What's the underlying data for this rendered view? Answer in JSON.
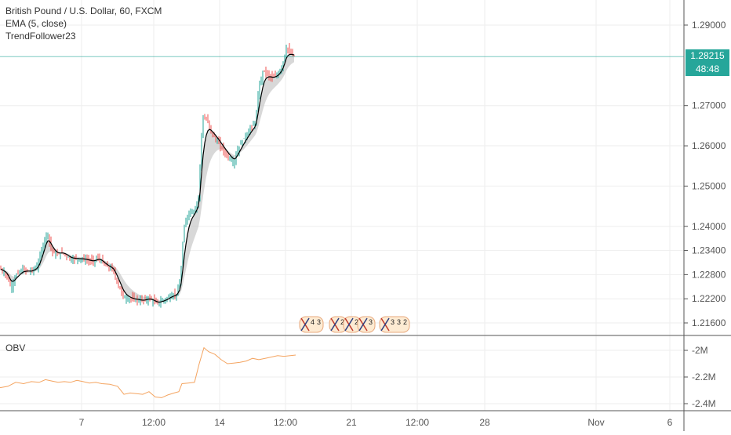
{
  "legend": {
    "symbol": "British Pound / U.S. Dollar, 60, FXCM",
    "indicator1": "EMA (5, close)",
    "indicator2": "TrendFollower23",
    "obv_label": "OBV"
  },
  "price_tag": {
    "value": "1.28215",
    "countdown": "48:48"
  },
  "colors": {
    "up": "#26a69a",
    "down": "#ef5350",
    "ema": "#000000",
    "fill": "#c8c8c8",
    "obv": "#f4a460",
    "grid": "#eeeeee",
    "price_line": "#26a69a"
  },
  "event_badges": [
    "4",
    "3",
    "23",
    "2",
    "3",
    "3",
    "3",
    "2"
  ],
  "chart_data": [
    {
      "type": "candlestick",
      "title": "British Pound / U.S. Dollar, 60, FXCM",
      "y_ticks": [
        "1.29000",
        "1.27000",
        "1.26000",
        "1.25000",
        "1.24000",
        "1.23400",
        "1.22800",
        "1.22200",
        "1.21600"
      ],
      "x_ticks": [
        "7",
        "12:00",
        "14",
        "12:00",
        "21",
        "12:00",
        "28",
        "Nov",
        "6"
      ],
      "ylim": [
        1.213,
        1.295
      ],
      "last_price": 1.28215,
      "path_points": [
        [
          0,
          1.2295
        ],
        [
          8,
          1.228
        ],
        [
          14,
          1.2248
        ],
        [
          20,
          1.2278
        ],
        [
          28,
          1.2292
        ],
        [
          40,
          1.2288
        ],
        [
          48,
          1.2302
        ],
        [
          55,
          1.2355
        ],
        [
          60,
          1.2388
        ],
        [
          66,
          1.2338
        ],
        [
          72,
          1.2328
        ],
        [
          80,
          1.2335
        ],
        [
          90,
          1.2318
        ],
        [
          98,
          1.232
        ],
        [
          108,
          1.2318
        ],
        [
          118,
          1.2312
        ],
        [
          126,
          1.2322
        ],
        [
          134,
          1.2302
        ],
        [
          144,
          1.2292
        ],
        [
          150,
          1.2258
        ],
        [
          157,
          1.2225
        ],
        [
          164,
          1.222
        ],
        [
          172,
          1.2218
        ],
        [
          182,
          1.2215
        ],
        [
          190,
          1.2222
        ],
        [
          200,
          1.2208
        ],
        [
          210,
          1.2218
        ],
        [
          218,
          1.2228
        ],
        [
          225,
          1.2232
        ],
        [
          230,
          1.2262
        ],
        [
          234,
          1.2388
        ],
        [
          240,
          1.2435
        ],
        [
          248,
          1.244
        ],
        [
          253,
          1.247
        ],
        [
          258,
          1.2668
        ],
        [
          264,
          1.2665
        ],
        [
          270,
          1.263
        ],
        [
          278,
          1.2608
        ],
        [
          286,
          1.2585
        ],
        [
          292,
          1.257
        ],
        [
          298,
          1.2558
        ],
        [
          304,
          1.2595
        ],
        [
          312,
          1.2622
        ],
        [
          320,
          1.2645
        ],
        [
          326,
          1.266
        ],
        [
          330,
          1.2745
        ],
        [
          336,
          1.279
        ],
        [
          342,
          1.2775
        ],
        [
          348,
          1.2768
        ],
        [
          354,
          1.2778
        ],
        [
          360,
          1.28
        ],
        [
          365,
          1.2843
        ],
        [
          370,
          1.283
        ],
        [
          376,
          1.2822
        ]
      ]
    },
    {
      "type": "line",
      "title": "OBV",
      "y_ticks": [
        "-2M",
        "-2.2M",
        "-2.4M"
      ],
      "ylim": [
        -2.47,
        -1.93
      ],
      "series": [
        {
          "name": "OBV",
          "values": [
            [
              0,
              -2.28
            ],
            [
              10,
              -2.27
            ],
            [
              20,
              -2.24
            ],
            [
              30,
              -2.25
            ],
            [
              40,
              -2.235
            ],
            [
              50,
              -2.24
            ],
            [
              58,
              -2.22
            ],
            [
              66,
              -2.23
            ],
            [
              74,
              -2.24
            ],
            [
              82,
              -2.235
            ],
            [
              90,
              -2.24
            ],
            [
              98,
              -2.225
            ],
            [
              106,
              -2.235
            ],
            [
              114,
              -2.245
            ],
            [
              122,
              -2.24
            ],
            [
              130,
              -2.25
            ],
            [
              140,
              -2.255
            ],
            [
              150,
              -2.27
            ],
            [
              158,
              -2.33
            ],
            [
              166,
              -2.32
            ],
            [
              174,
              -2.325
            ],
            [
              182,
              -2.33
            ],
            [
              190,
              -2.31
            ],
            [
              198,
              -2.35
            ],
            [
              206,
              -2.355
            ],
            [
              214,
              -2.335
            ],
            [
              222,
              -2.32
            ],
            [
              228,
              -2.31
            ],
            [
              232,
              -2.25
            ],
            [
              240,
              -2.245
            ],
            [
              248,
              -2.24
            ],
            [
              254,
              -2.1
            ],
            [
              260,
              -1.98
            ],
            [
              266,
              -2.01
            ],
            [
              274,
              -2.03
            ],
            [
              282,
              -2.07
            ],
            [
              290,
              -2.1
            ],
            [
              298,
              -2.095
            ],
            [
              306,
              -2.09
            ],
            [
              314,
              -2.08
            ],
            [
              322,
              -2.06
            ],
            [
              330,
              -2.07
            ],
            [
              338,
              -2.06
            ],
            [
              346,
              -2.05
            ],
            [
              354,
              -2.04
            ],
            [
              362,
              -2.045
            ],
            [
              370,
              -2.04
            ],
            [
              377,
              -2.035
            ]
          ]
        }
      ]
    }
  ]
}
